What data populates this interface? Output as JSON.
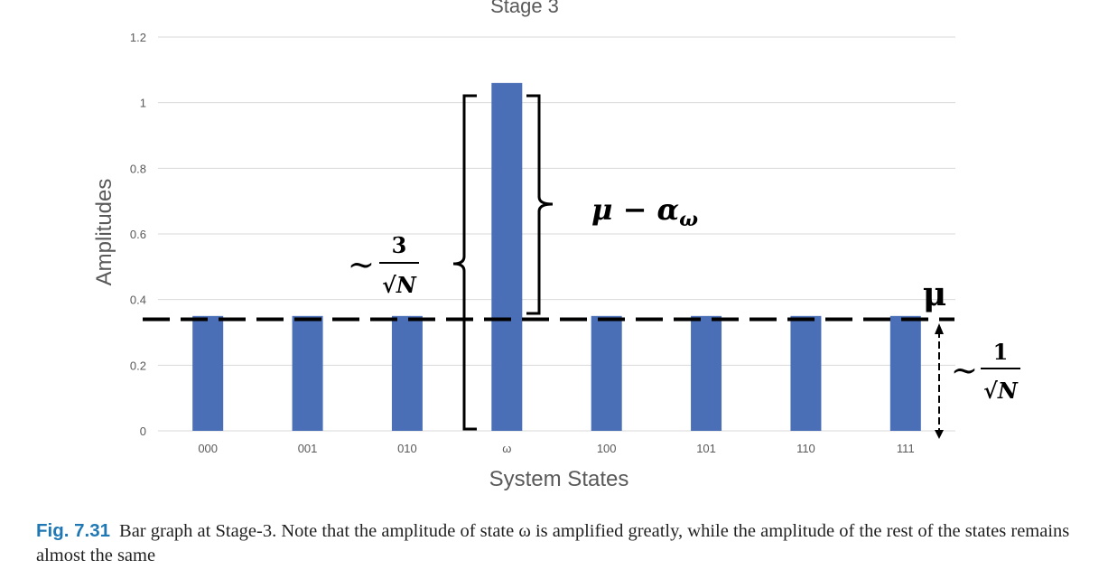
{
  "chart_data": {
    "type": "bar",
    "title": "Stage 3",
    "xlabel": "System States",
    "ylabel": "Amplitudes",
    "categories": [
      "000",
      "001",
      "010",
      "ω",
      "100",
      "101",
      "110",
      "111"
    ],
    "values": [
      0.35,
      0.35,
      0.35,
      1.06,
      0.35,
      0.35,
      0.35,
      0.35
    ],
    "ylim": [
      0,
      1.2
    ],
    "yticks": [
      0,
      0.2,
      0.4,
      0.6,
      0.8,
      1,
      1.2
    ],
    "ytick_labels": [
      "0",
      "0.2",
      "0.4",
      "0.6",
      "0.8",
      "1",
      "1.2"
    ],
    "bar_color": "#4a6fb6",
    "mean_line_value": 0.34,
    "grid": true,
    "annotations": {
      "mu_minus_alpha": "μ − αω",
      "mu": "μ",
      "three_over_sqrtN": {
        "prefix": "~",
        "numerator": "3",
        "denominator": "√N"
      },
      "one_over_sqrtN": {
        "prefix": "~",
        "numerator": "1",
        "denominator": "√N"
      }
    }
  },
  "caption": {
    "label": "Fig. 7.31",
    "text": "Bar graph at Stage-3. Note that the amplitude of state ω is amplified greatly, while the amplitude of the rest of the states remains almost the same"
  }
}
